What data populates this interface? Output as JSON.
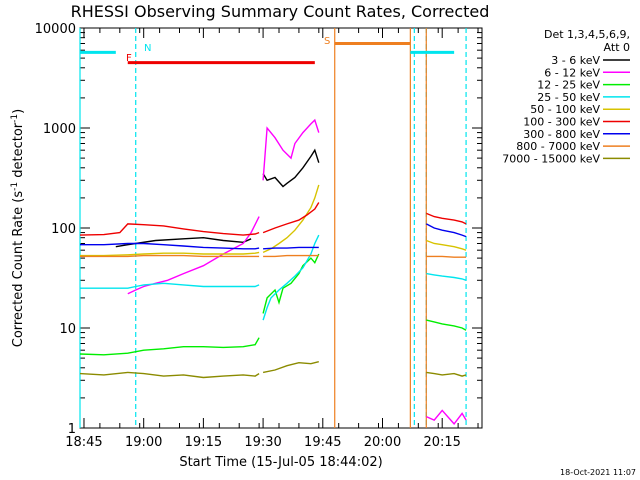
{
  "chart_data": {
    "type": "line",
    "title": "RHESSI Observing Summary Count Rates, Corrected",
    "xlabel": "Start Time (15-Jul-05 18:44:02)",
    "ylabel": "Corrected Count Rate (s",
    "ylabel_sup1": "-1",
    "ylabel_mid": " detector",
    "ylabel_sup2": "-1",
    "ylabel_end": ")",
    "yscale": "log",
    "ylim": [
      1,
      10000
    ],
    "xlim": [
      "18:44",
      "20:25"
    ],
    "y_ticks": [
      "1",
      "10",
      "100",
      "1000",
      "10000"
    ],
    "x_ticks": [
      "18:45",
      "19:00",
      "19:15",
      "19:30",
      "19:45",
      "20:00",
      "20:15"
    ],
    "grid": false,
    "legend_position": "top-right",
    "legend_header": [
      "Det 1,3,4,5,6,9,",
      "Att 0"
    ],
    "timestamp": "18-Oct-2021 11:07",
    "annotations": {
      "N": {
        "label": "N",
        "color": "#00e5ee"
      },
      "F": {
        "label": "F",
        "color": "#ee0000"
      },
      "S": {
        "label": "S",
        "color": "#ee7f20"
      }
    },
    "segments": [
      {
        "flag": "N",
        "from": "18:44",
        "to": "18:53",
        "level": 5700,
        "color": "#00e5ee"
      },
      {
        "flag": "F",
        "from": "18:56",
        "to": "19:43",
        "level": 4500,
        "color": "#ee0000"
      },
      {
        "flag": "S",
        "from": "19:48",
        "to": "20:07",
        "level": 7000,
        "color": "#ee7f20"
      },
      {
        "flag": "N",
        "from": "20:07",
        "to": "20:18",
        "level": 5700,
        "color": "#00e5ee"
      }
    ],
    "vlines": [
      {
        "time": "18:44",
        "color": "#00e5ee",
        "style": "solid"
      },
      {
        "time": "18:58",
        "color": "#00e5ee",
        "style": "dashed"
      },
      {
        "time": "19:48",
        "color": "#ee7f20",
        "style": "solid"
      },
      {
        "time": "20:07",
        "color": "#ee7f20",
        "style": "solid"
      },
      {
        "time": "20:08",
        "color": "#00e5ee",
        "style": "dashed"
      },
      {
        "time": "20:11",
        "color": "#00e5ee",
        "style": "dashed"
      },
      {
        "time": "20:11",
        "color": "#ee7f20",
        "style": "solid"
      },
      {
        "time": "20:21",
        "color": "#00e5ee",
        "style": "dashed"
      }
    ],
    "series": [
      {
        "name": "3 - 6 keV",
        "color": "#000000",
        "segments": [
          {
            "x": [
              "18:53",
              "18:56",
              "18:58",
              "19:03",
              "19:10",
              "19:15",
              "19:20",
              "19:25",
              "19:27"
            ],
            "y": [
              65,
              68,
              70,
              75,
              78,
              80,
              75,
              72,
              78
            ]
          },
          {
            "x": [
              "19:30",
              "19:31",
              "19:33",
              "19:35",
              "19:36",
              "19:38",
              "19:40",
              "19:42",
              "19:43",
              "19:44"
            ],
            "y": [
              350,
              300,
              320,
              260,
              280,
              320,
              400,
              520,
              600,
              450
            ]
          }
        ]
      },
      {
        "name": "6 - 12 keV",
        "color": "#ff00ff",
        "segments": [
          {
            "x": [
              "18:56",
              "18:58",
              "19:00",
              "19:03",
              "19:06",
              "19:10",
              "19:15",
              "19:20",
              "19:25",
              "19:27",
              "19:29"
            ],
            "y": [
              22,
              24,
              26,
              28,
              30,
              35,
              42,
              55,
              70,
              90,
              130
            ]
          },
          {
            "x": [
              "19:30",
              "19:31",
              "19:33",
              "19:35",
              "19:37",
              "19:38",
              "19:40",
              "19:42",
              "19:43",
              "19:44"
            ],
            "y": [
              300,
              1000,
              800,
              600,
              500,
              700,
              900,
              1100,
              1200,
              900
            ]
          },
          {
            "x": [
              "20:11",
              "20:13",
              "20:15",
              "20:18",
              "20:20",
              "20:21"
            ],
            "y": [
              1.3,
              1.2,
              1.5,
              1.1,
              1.4,
              1.2
            ]
          }
        ]
      },
      {
        "name": "12 - 25 keV",
        "color": "#00ee00",
        "segments": [
          {
            "x": [
              "18:44",
              "18:50",
              "18:56",
              "19:00",
              "19:05",
              "19:10",
              "19:15",
              "19:20",
              "19:25",
              "19:28",
              "19:29"
            ],
            "y": [
              5.5,
              5.4,
              5.6,
              6,
              6.2,
              6.5,
              6.5,
              6.4,
              6.5,
              6.8,
              8
            ]
          },
          {
            "x": [
              "19:30",
              "19:31",
              "19:33",
              "19:34",
              "19:35",
              "19:37",
              "19:39",
              "19:40",
              "19:42",
              "19:43",
              "19:44"
            ],
            "y": [
              14,
              20,
              24,
              18,
              25,
              28,
              35,
              42,
              50,
              45,
              55
            ]
          },
          {
            "x": [
              "20:11",
              "20:13",
              "20:15",
              "20:18",
              "20:20",
              "20:21"
            ],
            "y": [
              12,
              11.5,
              11,
              10.5,
              10,
              9.5
            ]
          }
        ]
      },
      {
        "name": "25 - 50 keV",
        "color": "#00e5ee",
        "segments": [
          {
            "x": [
              "18:44",
              "18:50",
              "18:56",
              "18:58",
              "19:00",
              "19:05",
              "19:10",
              "19:15",
              "19:20",
              "19:25",
              "19:28",
              "19:29"
            ],
            "y": [
              25,
              25,
              25,
              26,
              27,
              28,
              27,
              26,
              26,
              26,
              26,
              27
            ]
          },
          {
            "x": [
              "19:30",
              "19:31",
              "19:32",
              "19:34",
              "19:36",
              "19:38",
              "19:40",
              "19:42",
              "19:43",
              "19:44"
            ],
            "y": [
              12,
              16,
              20,
              24,
              28,
              33,
              40,
              55,
              70,
              85
            ]
          },
          {
            "x": [
              "20:11",
              "20:13",
              "20:15",
              "20:18",
              "20:20",
              "20:21"
            ],
            "y": [
              35,
              34,
              33,
              32,
              31,
              30
            ]
          }
        ]
      },
      {
        "name": "50 - 100 keV",
        "color": "#d7c300",
        "segments": [
          {
            "x": [
              "18:44",
              "18:50",
              "18:56",
              "19:00",
              "19:05",
              "19:10",
              "19:15",
              "19:20",
              "19:25",
              "19:28",
              "19:29"
            ],
            "y": [
              53,
              53,
              54,
              55,
              56,
              56,
              55,
              55,
              55,
              56,
              57
            ]
          },
          {
            "x": [
              "19:30",
              "19:32",
              "19:34",
              "19:36",
              "19:38",
              "19:40",
              "19:42",
              "19:43",
              "19:44"
            ],
            "y": [
              57,
              62,
              70,
              80,
              95,
              120,
              160,
              200,
              270
            ]
          },
          {
            "x": [
              "20:11",
              "20:13",
              "20:15",
              "20:18",
              "20:20",
              "20:21"
            ],
            "y": [
              75,
              70,
              68,
              65,
              62,
              60
            ]
          }
        ]
      },
      {
        "name": "100 - 300 keV",
        "color": "#ee0000",
        "segments": [
          {
            "x": [
              "18:44",
              "18:50",
              "18:54",
              "18:56",
              "19:00",
              "19:05",
              "19:10",
              "19:15",
              "19:20",
              "19:25",
              "19:28",
              "19:29"
            ],
            "y": [
              85,
              86,
              90,
              110,
              108,
              105,
              98,
              92,
              88,
              85,
              87,
              90
            ]
          },
          {
            "x": [
              "19:30",
              "19:33",
              "19:36",
              "19:39",
              "19:41",
              "19:43",
              "19:44"
            ],
            "y": [
              90,
              100,
              110,
              120,
              135,
              155,
              180
            ]
          },
          {
            "x": [
              "20:11",
              "20:13",
              "20:15",
              "20:18",
              "20:20",
              "20:21"
            ],
            "y": [
              140,
              130,
              125,
              120,
              115,
              110
            ]
          }
        ]
      },
      {
        "name": "300 - 800 keV",
        "color": "#0000ee",
        "segments": [
          {
            "x": [
              "18:44",
              "18:50",
              "18:56",
              "19:00",
              "19:05",
              "19:10",
              "19:15",
              "19:20",
              "19:25",
              "19:28",
              "19:29"
            ],
            "y": [
              68,
              68,
              70,
              70,
              68,
              66,
              64,
              63,
              62,
              62,
              63
            ]
          },
          {
            "x": [
              "19:30",
              "19:33",
              "19:36",
              "19:39",
              "19:42",
              "19:44"
            ],
            "y": [
              62,
              63,
              63,
              64,
              64,
              64
            ]
          },
          {
            "x": [
              "20:11",
              "20:13",
              "20:15",
              "20:18",
              "20:20",
              "20:21"
            ],
            "y": [
              110,
              100,
              95,
              90,
              85,
              82
            ]
          }
        ]
      },
      {
        "name": "800 - 7000 keV",
        "color": "#ee7f20",
        "segments": [
          {
            "x": [
              "18:44",
              "18:50",
              "18:56",
              "19:00",
              "19:05",
              "19:10",
              "19:15",
              "19:20",
              "19:25",
              "19:28",
              "19:29"
            ],
            "y": [
              52,
              52,
              52,
              53,
              53,
              53,
              52,
              52,
              52,
              52,
              52
            ]
          },
          {
            "x": [
              "19:30",
              "19:33",
              "19:36",
              "19:39",
              "19:42",
              "19:44"
            ],
            "y": [
              52,
              52,
              53,
              53,
              53,
              53
            ]
          },
          {
            "x": [
              "20:11",
              "20:13",
              "20:15",
              "20:18",
              "20:20",
              "20:21"
            ],
            "y": [
              52,
              52,
              52,
              51,
              51,
              51
            ]
          }
        ]
      },
      {
        "name": "7000 - 15000 keV",
        "color": "#8b8b00",
        "segments": [
          {
            "x": [
              "18:44",
              "18:50",
              "18:56",
              "19:00",
              "19:05",
              "19:10",
              "19:15",
              "19:20",
              "19:25",
              "19:28",
              "19:29"
            ],
            "y": [
              3.5,
              3.4,
              3.6,
              3.5,
              3.3,
              3.4,
              3.2,
              3.3,
              3.4,
              3.3,
              3.5
            ]
          },
          {
            "x": [
              "19:30",
              "19:33",
              "19:36",
              "19:39",
              "19:42",
              "19:44"
            ],
            "y": [
              3.6,
              3.8,
              4.2,
              4.5,
              4.4,
              4.6
            ]
          },
          {
            "x": [
              "20:11",
              "20:13",
              "20:15",
              "20:18",
              "20:20",
              "20:21"
            ],
            "y": [
              3.6,
              3.5,
              3.4,
              3.5,
              3.3,
              3.4
            ]
          }
        ]
      }
    ]
  }
}
